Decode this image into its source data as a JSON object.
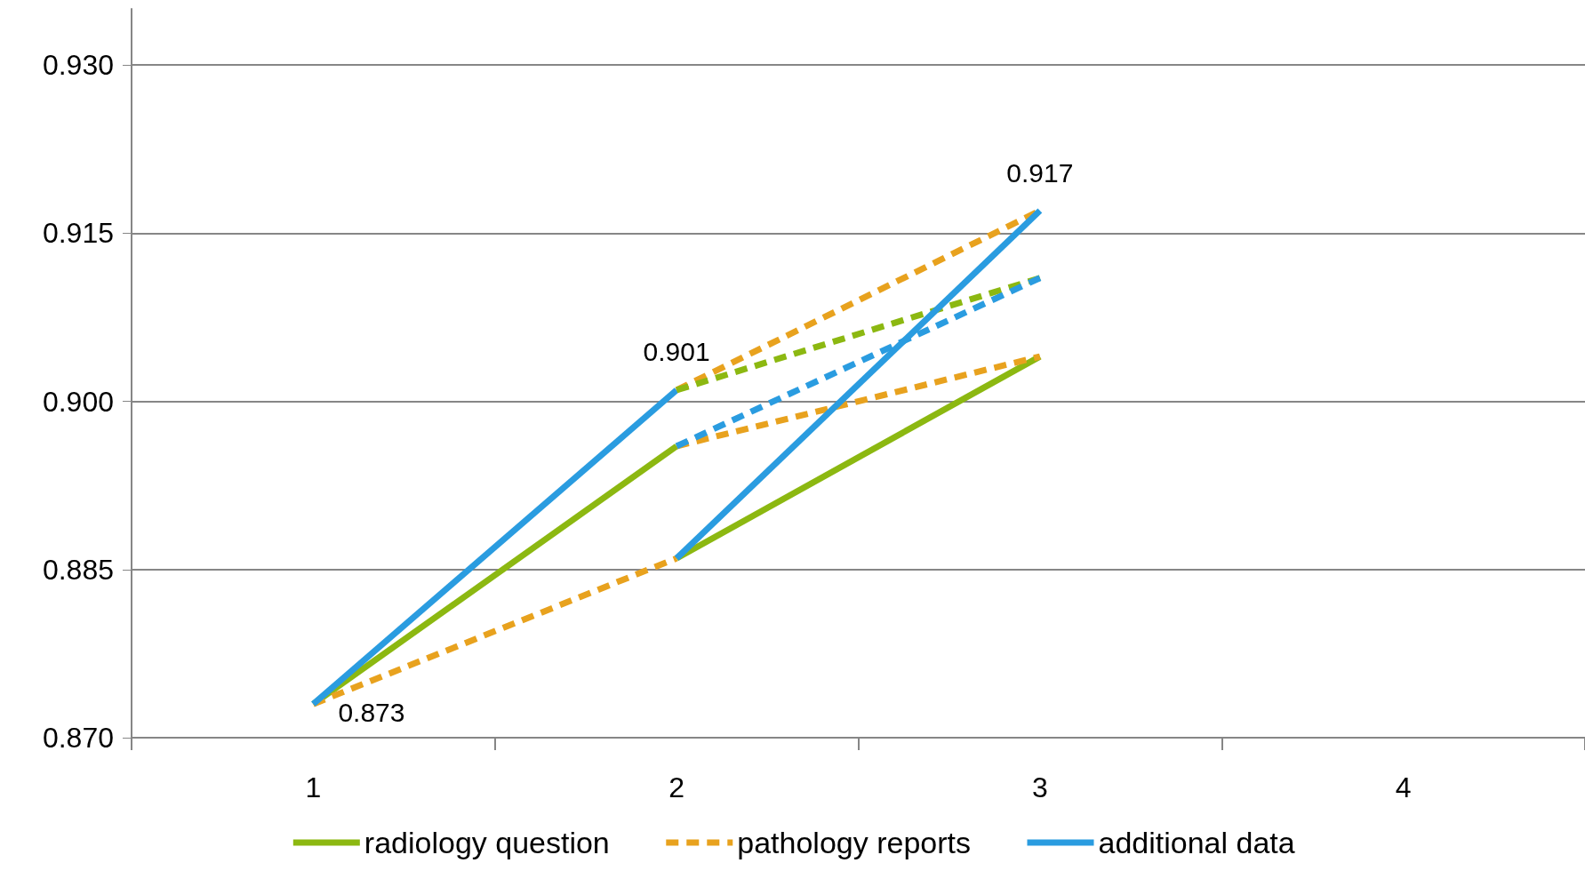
{
  "chart_data": {
    "type": "line",
    "categories": [
      "1",
      "2",
      "3",
      "4"
    ],
    "series": [
      {
        "name": "radiology question",
        "color": "#8cb811",
        "line_style": "solid",
        "values": [
          0.873,
          0.896,
          null,
          null
        ]
      },
      {
        "name": "pathology reports",
        "color": "#e8a21e",
        "line_style": "dashed",
        "values": [
          0.873,
          0.886,
          null,
          null
        ]
      },
      {
        "name": "additional data",
        "color": "#2a9ce0",
        "line_style": "solid",
        "values": [
          0.873,
          0.901,
          null,
          null
        ],
        "value_labels": [
          "0.873",
          "0.901",
          null,
          null
        ]
      },
      {
        "color": "#8cb811",
        "line_style": "solid",
        "values": [
          null,
          0.886,
          0.904,
          null
        ]
      },
      {
        "color": "#e8a21e",
        "line_style": "dashed",
        "values": [
          null,
          0.896,
          0.904,
          null
        ]
      },
      {
        "color": "#e8a21e",
        "line_style": "dashed",
        "values": [
          null,
          0.901,
          0.917,
          null
        ]
      },
      {
        "color": "#8cb811",
        "line_style": "dashed",
        "values": [
          null,
          0.901,
          0.911,
          null
        ]
      },
      {
        "color": "#2a9ce0",
        "line_style": "dashed",
        "values": [
          null,
          0.896,
          0.911,
          null
        ]
      },
      {
        "color": "#2a9ce0",
        "line_style": "solid",
        "values": [
          null,
          0.886,
          0.917,
          null
        ],
        "value_labels": [
          null,
          null,
          "0.917",
          null
        ]
      }
    ],
    "ylim": [
      0.87,
      0.935
    ],
    "yticks": [
      {
        "value": 0.87,
        "label": "0.870"
      },
      0.885,
      {
        "value": 0.9,
        "label": "0.900"
      },
      0.915,
      {
        "value": 0.93,
        "label": "0.930"
      }
    ],
    "grid": "y",
    "legend": "bottom"
  }
}
